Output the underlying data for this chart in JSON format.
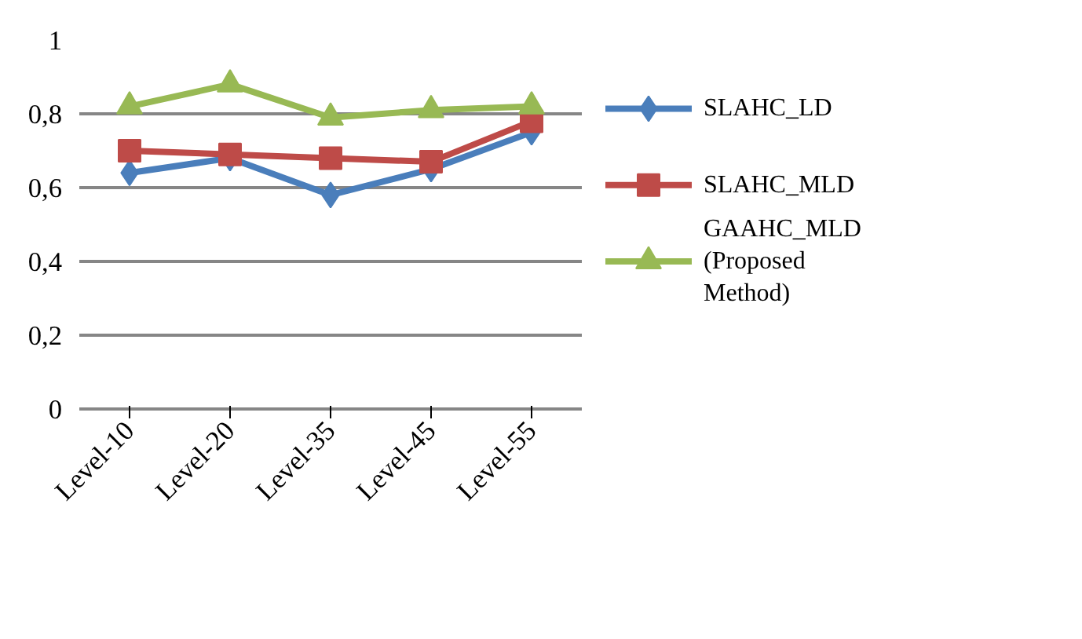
{
  "chart_data": {
    "type": "line",
    "categories": [
      "Level-10",
      "Level-20",
      "Level-35",
      "Level-45",
      "Level-55"
    ],
    "series": [
      {
        "name": "SLAHC_LD",
        "color": "#4a7ebb",
        "marker": "diamond",
        "values": [
          0.64,
          0.68,
          0.58,
          0.65,
          0.75
        ]
      },
      {
        "name": "SLAHC_MLD",
        "color": "#be4b48",
        "marker": "square",
        "values": [
          0.7,
          0.69,
          0.68,
          0.67,
          0.78
        ]
      },
      {
        "name": "GAAHC_MLD (Proposed Method)",
        "color": "#98b954",
        "marker": "triangle",
        "values": [
          0.82,
          0.88,
          0.79,
          0.81,
          0.82
        ]
      }
    ],
    "ylim": [
      0,
      1
    ],
    "yticks": [
      {
        "value": 0,
        "label": "0"
      },
      {
        "value": 0.2,
        "label": "0,2"
      },
      {
        "value": 0.4,
        "label": "0,4"
      },
      {
        "value": 0.6,
        "label": "0,6"
      },
      {
        "value": 0.8,
        "label": "0,8"
      },
      {
        "value": 1,
        "label": "1"
      }
    ],
    "grid": "y",
    "legend": "right",
    "line_style": "solid"
  }
}
